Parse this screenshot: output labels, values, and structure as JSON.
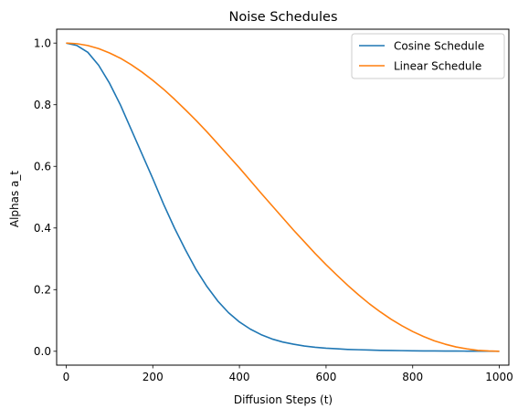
{
  "chart_data": {
    "type": "line",
    "title": "Noise Schedules",
    "xlabel": "Diffusion Steps (t)",
    "ylabel": "Alphas a_t",
    "xlim": [
      -22,
      1022
    ],
    "ylim": [
      -0.045,
      1.045
    ],
    "xticks": [
      0,
      200,
      400,
      600,
      800,
      1000
    ],
    "yticks": [
      0.0,
      0.2,
      0.4,
      0.6,
      0.8,
      1.0
    ],
    "xtick_labels": [
      "0",
      "200",
      "400",
      "600",
      "800",
      "1000"
    ],
    "ytick_labels": [
      "0.0",
      "0.2",
      "0.4",
      "0.6",
      "0.8",
      "1.0"
    ],
    "grid": false,
    "legend": "top-right",
    "series": [
      {
        "name": "Cosine Schedule",
        "color": "#1f77b4",
        "x": [
          0,
          25,
          50,
          75,
          100,
          125,
          150,
          175,
          200,
          225,
          250,
          275,
          300,
          325,
          350,
          375,
          400,
          425,
          450,
          475,
          500,
          525,
          550,
          575,
          600,
          625,
          650,
          675,
          700,
          725,
          750,
          775,
          800,
          825,
          850,
          875,
          900,
          925,
          950,
          975,
          1000
        ],
        "y": [
          1.0,
          0.992,
          0.97,
          0.928,
          0.87,
          0.8,
          0.72,
          0.64,
          0.56,
          0.477,
          0.4,
          0.33,
          0.265,
          0.21,
          0.163,
          0.125,
          0.095,
          0.072,
          0.054,
          0.04,
          0.03,
          0.023,
          0.017,
          0.013,
          0.01,
          0.008,
          0.006,
          0.005,
          0.004,
          0.003,
          0.0025,
          0.002,
          0.0015,
          0.0012,
          0.001,
          0.0008,
          0.0006,
          0.0005,
          0.0004,
          0.0002,
          0.0
        ]
      },
      {
        "name": "Linear Schedule",
        "color": "#ff7f0e",
        "x": [
          0,
          25,
          50,
          75,
          100,
          125,
          150,
          175,
          200,
          225,
          250,
          275,
          300,
          325,
          350,
          375,
          400,
          425,
          450,
          475,
          500,
          525,
          550,
          575,
          600,
          625,
          650,
          675,
          700,
          725,
          750,
          775,
          800,
          825,
          850,
          875,
          900,
          925,
          950,
          975,
          1000
        ],
        "y": [
          1.0,
          0.998,
          0.992,
          0.982,
          0.968,
          0.951,
          0.93,
          0.906,
          0.879,
          0.85,
          0.818,
          0.784,
          0.749,
          0.712,
          0.673,
          0.634,
          0.595,
          0.554,
          0.513,
          0.473,
          0.433,
          0.393,
          0.355,
          0.317,
          0.281,
          0.247,
          0.214,
          0.183,
          0.154,
          0.128,
          0.104,
          0.083,
          0.064,
          0.048,
          0.034,
          0.023,
          0.014,
          0.008,
          0.003,
          0.001,
          0.0
        ]
      }
    ]
  }
}
